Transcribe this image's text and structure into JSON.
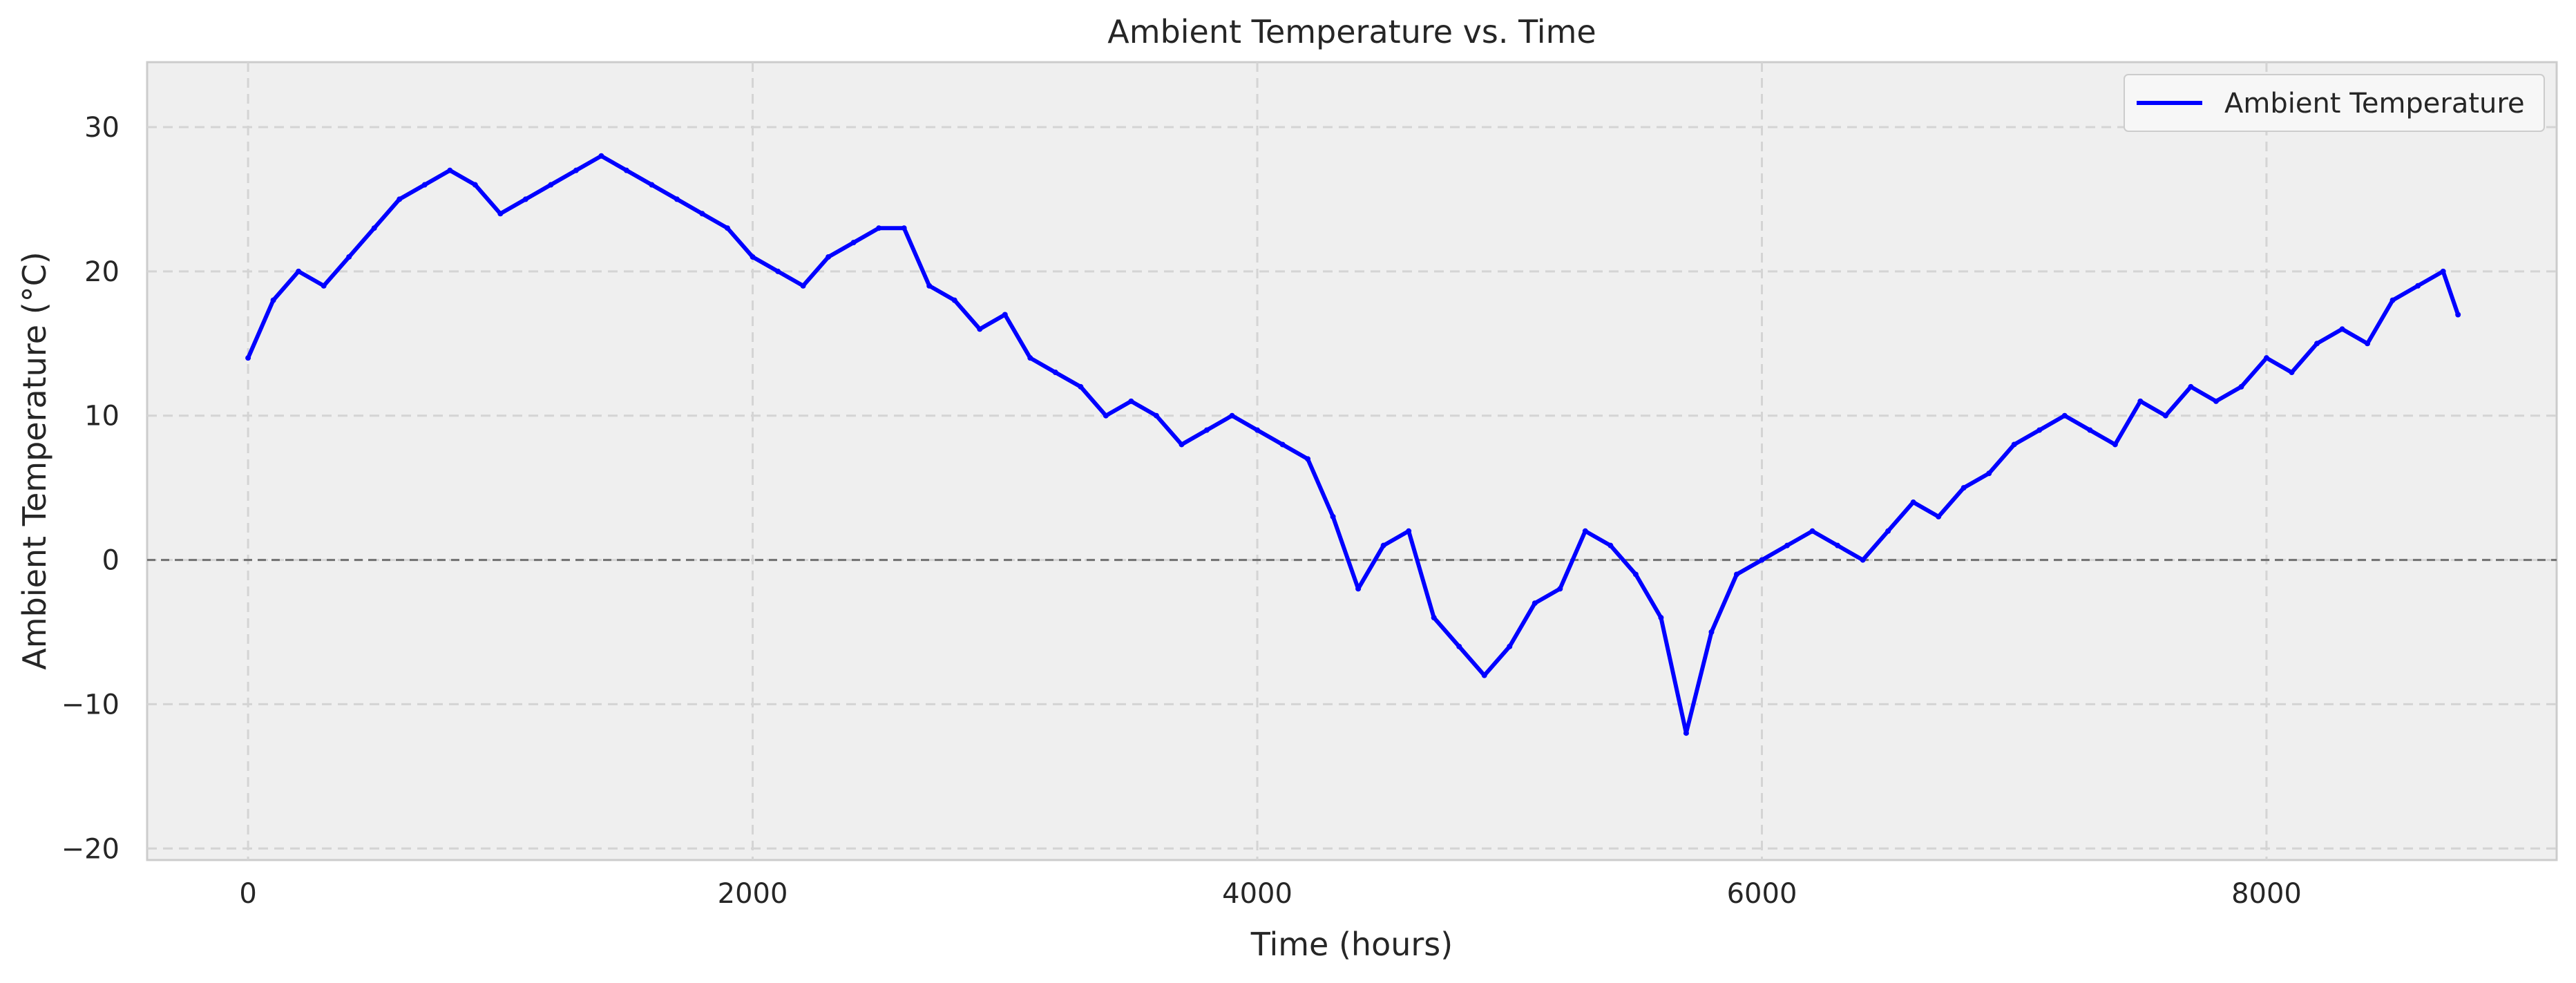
{
  "chart_data": {
    "type": "line",
    "title": "Ambient Temperature vs. Time",
    "xlabel": "Time (hours)",
    "ylabel": "Ambient Temperature (°C)",
    "xlim": [
      -400,
      9150
    ],
    "ylim": [
      -20.8,
      34.5
    ],
    "xticks": [
      0,
      2000,
      4000,
      6000,
      8000
    ],
    "yticks": [
      -20,
      -10,
      0,
      10,
      20,
      30
    ],
    "xtick_labels": [
      "0",
      "2000",
      "4000",
      "6000",
      "8000"
    ],
    "ytick_labels": [
      "−20",
      "−10",
      "0",
      "10",
      "20",
      "30"
    ],
    "grid": true,
    "legend_position": "top-right",
    "reference_line": {
      "y": 0,
      "style": "dashed",
      "color": "#707070"
    },
    "series": [
      {
        "name": "Ambient Temperature",
        "color": "#0000ff",
        "x": [
          0,
          100,
          200,
          300,
          400,
          500,
          600,
          700,
          800,
          900,
          1000,
          1100,
          1200,
          1300,
          1400,
          1500,
          1600,
          1700,
          1800,
          1900,
          2000,
          2100,
          2200,
          2300,
          2400,
          2500,
          2600,
          2700,
          2800,
          2900,
          3000,
          3100,
          3200,
          3300,
          3400,
          3500,
          3600,
          3700,
          3800,
          3900,
          4000,
          4100,
          4200,
          4300,
          4400,
          4500,
          4600,
          4700,
          4800,
          4900,
          5000,
          5100,
          5200,
          5300,
          5400,
          5500,
          5600,
          5700,
          5800,
          5900,
          6000,
          6100,
          6200,
          6300,
          6400,
          6500,
          6600,
          6700,
          6800,
          6900,
          7000,
          7100,
          7200,
          7300,
          7400,
          7500,
          7600,
          7700,
          7800,
          7900,
          8000,
          8100,
          8200,
          8300,
          8400,
          8500,
          8600,
          8700,
          8759
        ],
        "y": [
          14,
          18,
          20,
          19,
          21,
          23,
          25,
          26,
          27,
          26,
          24,
          25,
          26,
          27,
          28,
          27,
          26,
          25,
          24,
          23,
          21,
          20,
          19,
          21,
          22,
          23,
          23,
          19,
          18,
          16,
          17,
          14,
          13,
          12,
          10,
          11,
          10,
          8,
          9,
          10,
          9,
          8,
          7,
          3,
          -2,
          1,
          2,
          -4,
          -6,
          -8,
          -6,
          -3,
          -2,
          2,
          1,
          -1,
          -4,
          -12,
          -5,
          -1,
          0,
          1,
          2,
          1,
          0,
          2,
          4,
          3,
          5,
          6,
          8,
          9,
          10,
          9,
          8,
          11,
          10,
          12,
          11,
          12,
          14,
          13,
          15,
          16,
          15,
          18,
          19,
          20,
          17
        ]
      }
    ]
  }
}
